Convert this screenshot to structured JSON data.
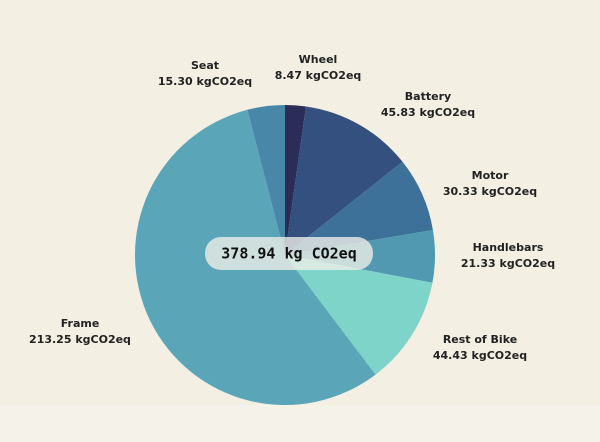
{
  "chart_data": {
    "type": "pie",
    "categories": [
      "Wheel",
      "Battery",
      "Motor",
      "Handlebars",
      "Rest of Bike",
      "Frame",
      "Seat"
    ],
    "values": [
      8.47,
      45.83,
      30.33,
      21.33,
      44.43,
      213.25,
      15.3
    ],
    "value_labels": [
      "8.47 kgCO2eq",
      "45.83 kgCO2eq",
      "30.33 kgCO2eq",
      "21.33 kgCO2eq",
      "44.43 kgCO2eq",
      "213.25 kgCO2eq",
      "15.30 kgCO2eq"
    ],
    "colors": [
      "#2b2c57",
      "#34507f",
      "#3e7199",
      "#5199b0",
      "#7fd4ca",
      "#5ba5b8",
      "#4987a9"
    ],
    "center_label": "378.94 kg CO2eq"
  }
}
